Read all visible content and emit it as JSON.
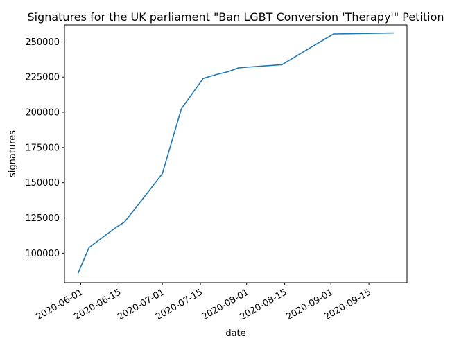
{
  "chart_data": {
    "type": "line",
    "title": "Signatures for the UK parliament \"Ban LGBT Conversion 'Therapy'\" Petition",
    "xlabel": "date",
    "ylabel": "signatures",
    "x_is_date": true,
    "xlim": [
      "2020-05-26",
      "2020-09-29"
    ],
    "ylim": [
      79000,
      262000
    ],
    "xticks": [
      "2020-06-01",
      "2020-06-15",
      "2020-07-01",
      "2020-07-15",
      "2020-08-01",
      "2020-08-15",
      "2020-09-01",
      "2020-09-15"
    ],
    "yticks": [
      100000,
      125000,
      150000,
      175000,
      200000,
      225000,
      250000
    ],
    "ytick_labels": [
      "100000",
      "125000",
      "150000",
      "175000",
      "200000",
      "225000",
      "250000"
    ],
    "grid": false,
    "series": [
      {
        "color": "#1f77b4",
        "points": [
          {
            "x": "2020-05-31",
            "y": 85800
          },
          {
            "x": "2020-06-04",
            "y": 103900
          },
          {
            "x": "2020-06-11",
            "y": 114000
          },
          {
            "x": "2020-06-14",
            "y": 118300
          },
          {
            "x": "2020-06-17",
            "y": 122000
          },
          {
            "x": "2020-06-24",
            "y": 139000
          },
          {
            "x": "2020-07-01",
            "y": 156400
          },
          {
            "x": "2020-07-08",
            "y": 202500
          },
          {
            "x": "2020-07-16",
            "y": 224000
          },
          {
            "x": "2020-07-21",
            "y": 226900
          },
          {
            "x": "2020-07-25",
            "y": 228700
          },
          {
            "x": "2020-07-29",
            "y": 231500
          },
          {
            "x": "2020-08-01",
            "y": 232000
          },
          {
            "x": "2020-08-14",
            "y": 233800
          },
          {
            "x": "2020-08-23",
            "y": 244200
          },
          {
            "x": "2020-09-02",
            "y": 255600
          },
          {
            "x": "2020-09-24",
            "y": 256300
          }
        ]
      }
    ]
  }
}
